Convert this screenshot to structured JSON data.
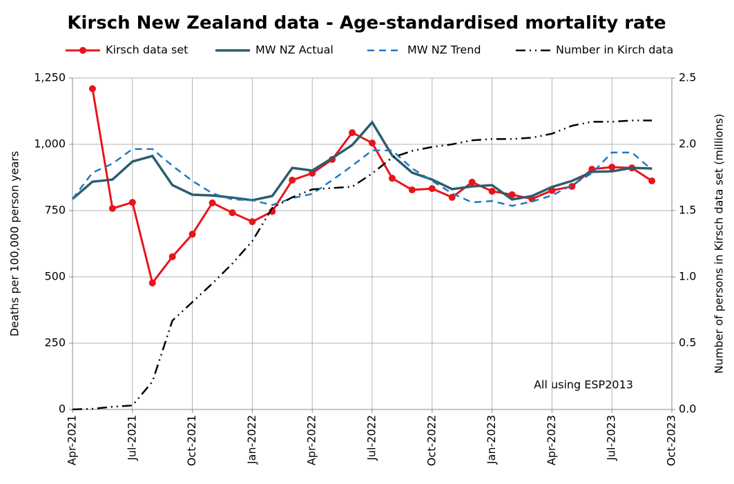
{
  "chart_data": {
    "type": "line",
    "title": "Kirsch New Zealand data - Age-standardised mortality rate",
    "y_label": "Deaths per 100,000 person years",
    "y2_label": "Number of persons in Kirsch data set (millions)",
    "annotation": "All using ESP2013",
    "x": [
      "2021-04",
      "2021-05",
      "2021-06",
      "2021-07",
      "2021-08",
      "2021-09",
      "2021-10",
      "2021-11",
      "2021-12",
      "2022-01",
      "2022-02",
      "2022-03",
      "2022-04",
      "2022-05",
      "2022-06",
      "2022-07",
      "2022-08",
      "2022-09",
      "2022-10",
      "2022-11",
      "2022-12",
      "2023-01",
      "2023-02",
      "2023-03",
      "2023-04",
      "2023-05",
      "2023-06",
      "2023-07",
      "2023-08",
      "2023-09"
    ],
    "xlim": [
      "2021-04",
      "2023-10"
    ],
    "xticks": [
      {
        "value": "2021-04",
        "label": "Apr-2021"
      },
      {
        "value": "2021-07",
        "label": "Jul-2021"
      },
      {
        "value": "2021-10",
        "label": "Oct-2021"
      },
      {
        "value": "2022-01",
        "label": "Jan-2022"
      },
      {
        "value": "2022-04",
        "label": "Apr-2022"
      },
      {
        "value": "2022-07",
        "label": "Jul-2022"
      },
      {
        "value": "2022-10",
        "label": "Oct-2022"
      },
      {
        "value": "2023-01",
        "label": "Jan-2023"
      },
      {
        "value": "2023-04",
        "label": "Apr-2023"
      },
      {
        "value": "2023-07",
        "label": "Jul-2023"
      },
      {
        "value": "2023-10",
        "label": "Oct-2023"
      }
    ],
    "ylim": [
      0,
      1250
    ],
    "yticks": [
      0,
      250,
      500,
      750,
      {
        "value": 1000,
        "label": "1,000"
      },
      {
        "value": 1250,
        "label": "1,250"
      }
    ],
    "y2lim": [
      0,
      2.5
    ],
    "y2ticks": [
      {
        "value": 0,
        "label": "0.0"
      },
      {
        "value": 0.5,
        "label": "0.5"
      },
      {
        "value": 1,
        "label": "1.0"
      },
      {
        "value": 1.5,
        "label": "1.5"
      },
      {
        "value": 2,
        "label": "2.0"
      },
      {
        "value": 2.5,
        "label": "2.5"
      }
    ],
    "grid": true,
    "series": [
      {
        "name": "Kirsch data set",
        "color": "#e8141b",
        "line_style": "solid",
        "marker": "circle",
        "values": [
          null,
          1210,
          758,
          781,
          477,
          576,
          661,
          779,
          742,
          708,
          747,
          865,
          891,
          943,
          1044,
          1005,
          872,
          828,
          833,
          800,
          857,
          823,
          810,
          794,
          826,
          841,
          906,
          914,
          911,
          862
        ]
      },
      {
        "name": "MW NZ Actual",
        "color": "#2b5e6d",
        "line_style": "solid",
        "values": [
          794,
          859,
          867,
          935,
          956,
          846,
          810,
          807,
          799,
          789,
          805,
          911,
          901,
          948,
          997,
          1083,
          958,
          893,
          867,
          831,
          841,
          846,
          792,
          805,
          839,
          862,
          896,
          898,
          911,
          909
        ]
      },
      {
        "name": "MW NZ Trend",
        "color": "#1f78c1",
        "line_style": "dashed",
        "values": [
          794,
          893,
          927,
          982,
          982,
          919,
          862,
          815,
          792,
          789,
          771,
          797,
          813,
          865,
          919,
          977,
          977,
          909,
          862,
          815,
          781,
          786,
          768,
          784,
          807,
          846,
          891,
          969,
          969,
          904
        ]
      },
      {
        "name": "Number in Kirch data",
        "color": "#000000",
        "line_style": "dashdot",
        "axis": "y2",
        "values": [
          0,
          0.005,
          0.02,
          0.03,
          0.21,
          0.67,
          0.81,
          0.95,
          1.1,
          1.27,
          1.52,
          1.6,
          1.66,
          1.67,
          1.68,
          1.78,
          1.9,
          1.95,
          1.98,
          2.0,
          2.03,
          2.04,
          2.04,
          2.05,
          2.08,
          2.14,
          2.17,
          2.17,
          2.18,
          2.18
        ]
      }
    ]
  }
}
